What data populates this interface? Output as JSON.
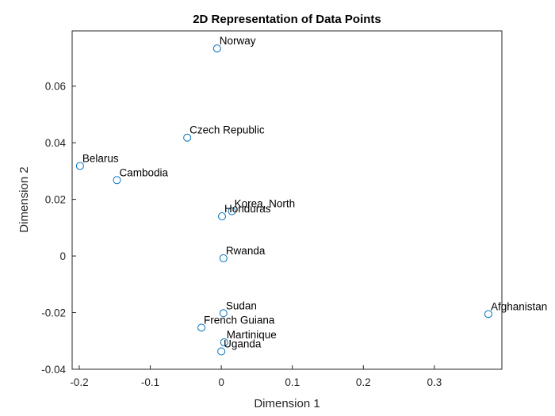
{
  "chart_data": {
    "type": "scatter",
    "title": "2D Representation of Data Points",
    "xlabel": "Dimension 1",
    "ylabel": "Dimension 2",
    "xlim": [
      -0.21,
      0.395
    ],
    "ylim": [
      -0.04,
      0.0795
    ],
    "xticks": [
      -0.2,
      -0.1,
      0,
      0.1,
      0.2,
      0.3
    ],
    "xtick_labels": [
      "-0.2",
      "-0.1",
      "0",
      "0.1",
      "0.2",
      "0.3"
    ],
    "yticks": [
      -0.04,
      -0.02,
      0,
      0.02,
      0.04,
      0.06
    ],
    "ytick_labels": [
      "-0.04",
      "-0.02",
      "0",
      "0.02",
      "0.04",
      "0.06"
    ],
    "grid": false,
    "marker": "circle",
    "marker_color": "#0072BD",
    "points": [
      {
        "label": "Norway",
        "x": -0.006,
        "y": 0.0733
      },
      {
        "label": "Czech Republic",
        "x": -0.048,
        "y": 0.0418
      },
      {
        "label": "Belarus",
        "x": -0.199,
        "y": 0.0318
      },
      {
        "label": "Cambodia",
        "x": -0.147,
        "y": 0.0268
      },
      {
        "label": "Korea, North",
        "x": 0.015,
        "y": 0.0158
      },
      {
        "label": "Honduras",
        "x": 0.001,
        "y": 0.014
      },
      {
        "label": "Rwanda",
        "x": 0.003,
        "y": -0.0008
      },
      {
        "label": "Sudan",
        "x": 0.003,
        "y": -0.0202
      },
      {
        "label": "Afghanistan",
        "x": 0.376,
        "y": -0.0205
      },
      {
        "label": "French Guiana",
        "x": -0.028,
        "y": -0.0253
      },
      {
        "label": "Martinique",
        "x": 0.004,
        "y": -0.0305
      },
      {
        "label": "Uganda",
        "x": 0.0,
        "y": -0.0337
      }
    ]
  }
}
